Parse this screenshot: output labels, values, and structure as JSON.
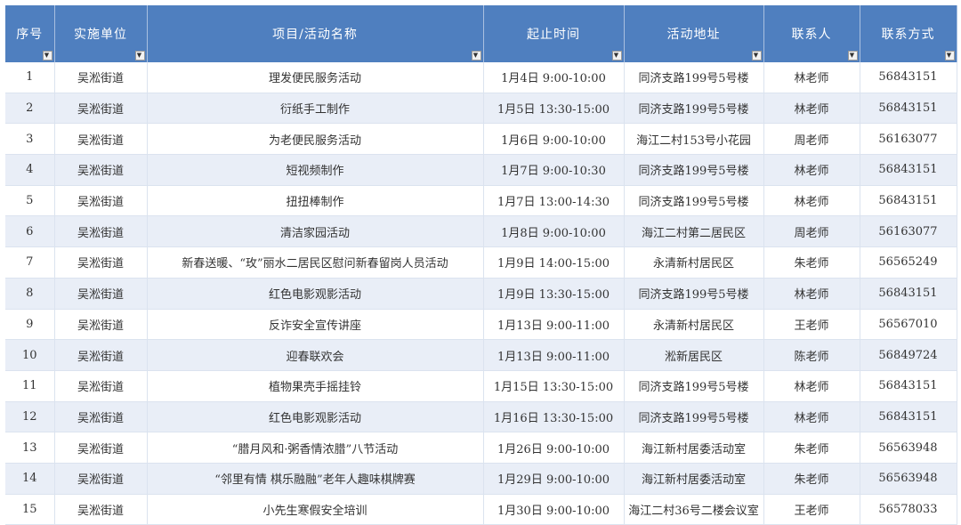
{
  "headers": [
    "序号",
    "实施单位",
    "项目/活动名称",
    "起止时间",
    "活动地址",
    "联系人",
    "联系方式"
  ],
  "rows": [
    [
      "1",
      "吴淞街道",
      "理发便民服务活动",
      "1月4日  9:00-10:00",
      "同济支路199号5号楼",
      "林老师",
      "56843151"
    ],
    [
      "2",
      "吴淞街道",
      "衍纸手工制作",
      "1月5日  13:30-15:00",
      "同济支路199号5号楼",
      "林老师",
      "56843151"
    ],
    [
      "3",
      "吴淞街道",
      "为老便民服务活动",
      "1月6日  9:00-10:00",
      "海江二村153号小花园",
      "周老师",
      "56163077"
    ],
    [
      "4",
      "吴淞街道",
      "短视频制作",
      "1月7日  9:00-10:30",
      "同济支路199号5号楼",
      "林老师",
      "56843151"
    ],
    [
      "5",
      "吴淞街道",
      "扭扭棒制作",
      "1月7日  13:00-14:30",
      "同济支路199号5号楼",
      "林老师",
      "56843151"
    ],
    [
      "6",
      "吴淞街道",
      "清洁家园活动",
      "1月8日  9:00-10:00",
      "海江二村第二居民区",
      "周老师",
      "56163077"
    ],
    [
      "7",
      "吴淞街道",
      "新春送暖、“玫”丽水二居民区慰问新春留岗人员活动",
      "1月9日  14:00-15:00",
      "永清新村居民区",
      "朱老师",
      "56565249"
    ],
    [
      "8",
      "吴淞街道",
      "红色电影观影活动",
      "1月9日  13:30-15:00",
      "同济支路199号5号楼",
      "林老师",
      "56843151"
    ],
    [
      "9",
      "吴淞街道",
      "反诈安全宣传讲座",
      "1月13日  9:00-11:00",
      "永清新村居民区",
      "王老师",
      "56567010"
    ],
    [
      "10",
      "吴淞街道",
      "迎春联欢会",
      "1月13日  9:00-11:00",
      "淞新居民区",
      "陈老师",
      "56849724"
    ],
    [
      "11",
      "吴淞街道",
      "植物果壳手摇挂铃",
      "1月15日  13:30-15:00",
      "同济支路199号5号楼",
      "林老师",
      "56843151"
    ],
    [
      "12",
      "吴淞街道",
      "红色电影观影活动",
      "1月16日  13:30-15:00",
      "同济支路199号5号楼",
      "林老师",
      "56843151"
    ],
    [
      "13",
      "吴淞街道",
      "“腊月风和·粥香情浓腊”八节活动",
      "1月26日  9:00-10:00",
      "海江新村居委活动室",
      "朱老师",
      "56563948"
    ],
    [
      "14",
      "吴淞街道",
      "“邻里有情  棋乐融融”老年人趣味棋牌赛",
      "1月29日  9:00-10:00",
      "海江新村居委活动室",
      "朱老师",
      "56563948"
    ],
    [
      "15",
      "吴淞街道",
      "小先生寒假安全培训",
      "1月30日  9:00-10:00",
      "海江二村36号二楼会议室",
      "王老师",
      "56578033"
    ]
  ],
  "colors": {
    "header": "#4f7fbf",
    "alt_row": "#e9eef7"
  }
}
